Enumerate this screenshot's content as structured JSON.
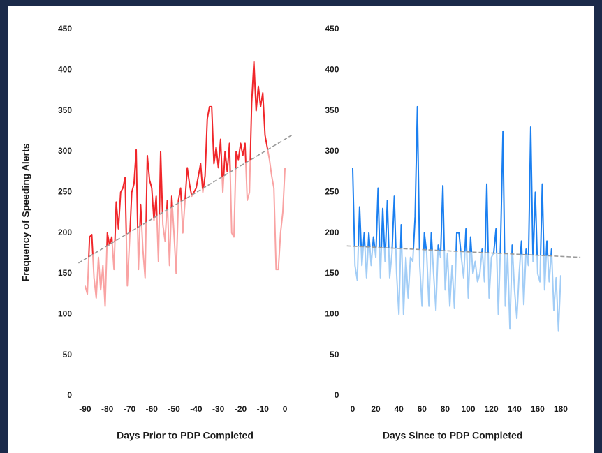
{
  "chart_data": [
    {
      "type": "line",
      "x_label": "Days Prior to PDP Completed",
      "y_label": "Frequency of Speeding Alerts",
      "xlim": [
        -95,
        5
      ],
      "ylim": [
        0,
        450
      ],
      "xticks": [
        -90,
        -80,
        -70,
        -60,
        -50,
        -40,
        -30,
        -20,
        -10,
        0
      ],
      "yticks": [
        0,
        50,
        100,
        150,
        200,
        250,
        300,
        350,
        400,
        450
      ],
      "trend": {
        "x": [
          -93,
          3
        ],
        "values": [
          163,
          320
        ],
        "color": "#9a9a9a"
      },
      "series": [
        {
          "color": "#f0262a",
          "color_below": "#f9a3a3",
          "x": [
            -90,
            -89,
            -88,
            -87,
            -86,
            -85,
            -84,
            -83,
            -82,
            -81,
            -80,
            -79,
            -78,
            -77,
            -76,
            -75,
            -74,
            -73,
            -72,
            -71,
            -70,
            -69,
            -68,
            -67,
            -66,
            -65,
            -64,
            -63,
            -62,
            -61,
            -60,
            -59,
            -58,
            -57,
            -56,
            -55,
            -54,
            -53,
            -52,
            -51,
            -50,
            -49,
            -48,
            -47,
            -46,
            -45,
            -44,
            -43,
            -42,
            -41,
            -40,
            -39,
            -38,
            -37,
            -36,
            -35,
            -34,
            -33,
            -32,
            -31,
            -30,
            -29,
            -28,
            -27,
            -26,
            -25,
            -24,
            -23,
            -22,
            -21,
            -20,
            -19,
            -18,
            -17,
            -16,
            -15,
            -14,
            -13,
            -12,
            -11,
            -10,
            -9,
            -8,
            -7,
            -6,
            -5,
            -4,
            -3,
            -2,
            -1,
            0
          ],
          "values": [
            135,
            125,
            195,
            198,
            145,
            120,
            170,
            130,
            160,
            110,
            200,
            185,
            195,
            155,
            238,
            205,
            250,
            255,
            268,
            135,
            190,
            250,
            260,
            302,
            155,
            235,
            180,
            145,
            295,
            265,
            255,
            215,
            245,
            165,
            300,
            210,
            190,
            240,
            160,
            245,
            200,
            150,
            240,
            255,
            200,
            240,
            280,
            260,
            245,
            250,
            255,
            270,
            285,
            250,
            270,
            340,
            355,
            355,
            285,
            305,
            280,
            315,
            250,
            300,
            275,
            310,
            200,
            195,
            300,
            290,
            310,
            295,
            310,
            240,
            250,
            360,
            410,
            350,
            380,
            355,
            372,
            320,
            305,
            290,
            270,
            255,
            155,
            155,
            200,
            225,
            280
          ]
        }
      ]
    },
    {
      "type": "line",
      "x_label": "Days Since to PDP Completed",
      "xlim": [
        -10,
        195
      ],
      "ylim": [
        0,
        450
      ],
      "xticks": [
        0,
        20,
        40,
        60,
        80,
        100,
        120,
        140,
        160,
        180
      ],
      "yticks": [
        0,
        50,
        100,
        150,
        200,
        250,
        300,
        350,
        400,
        450
      ],
      "trend": {
        "x": [
          -5,
          197
        ],
        "values": [
          184,
          170
        ],
        "color": "#9a9a9a"
      },
      "series": [
        {
          "color": "#1a7ff0",
          "color_below": "#a2cdf6",
          "x": [
            0,
            2,
            4,
            6,
            8,
            10,
            12,
            14,
            16,
            18,
            20,
            22,
            24,
            26,
            28,
            30,
            32,
            34,
            36,
            38,
            40,
            42,
            44,
            46,
            48,
            50,
            52,
            54,
            56,
            58,
            60,
            62,
            64,
            66,
            68,
            70,
            72,
            74,
            76,
            78,
            80,
            82,
            84,
            86,
            88,
            90,
            92,
            94,
            96,
            98,
            100,
            102,
            104,
            106,
            108,
            110,
            112,
            114,
            116,
            118,
            120,
            122,
            124,
            126,
            128,
            130,
            132,
            134,
            136,
            138,
            140,
            142,
            144,
            146,
            148,
            150,
            152,
            154,
            156,
            158,
            160,
            162,
            164,
            166,
            168,
            170,
            172,
            174,
            176,
            178,
            180
          ],
          "values": [
            280,
            160,
            142,
            232,
            160,
            200,
            145,
            200,
            160,
            195,
            170,
            255,
            145,
            230,
            165,
            240,
            145,
            175,
            245,
            150,
            100,
            210,
            100,
            170,
            120,
            170,
            165,
            220,
            355,
            160,
            110,
            200,
            175,
            110,
            200,
            150,
            105,
            185,
            170,
            258,
            130,
            175,
            110,
            160,
            108,
            200,
            200,
            170,
            145,
            205,
            120,
            195,
            150,
            165,
            140,
            150,
            180,
            140,
            260,
            120,
            170,
            175,
            205,
            100,
            190,
            325,
            110,
            175,
            82,
            185,
            130,
            95,
            150,
            190,
            112,
            180,
            160,
            330,
            165,
            250,
            150,
            140,
            260,
            130,
            190,
            140,
            180,
            105,
            145,
            80,
            148
          ]
        }
      ]
    }
  ]
}
